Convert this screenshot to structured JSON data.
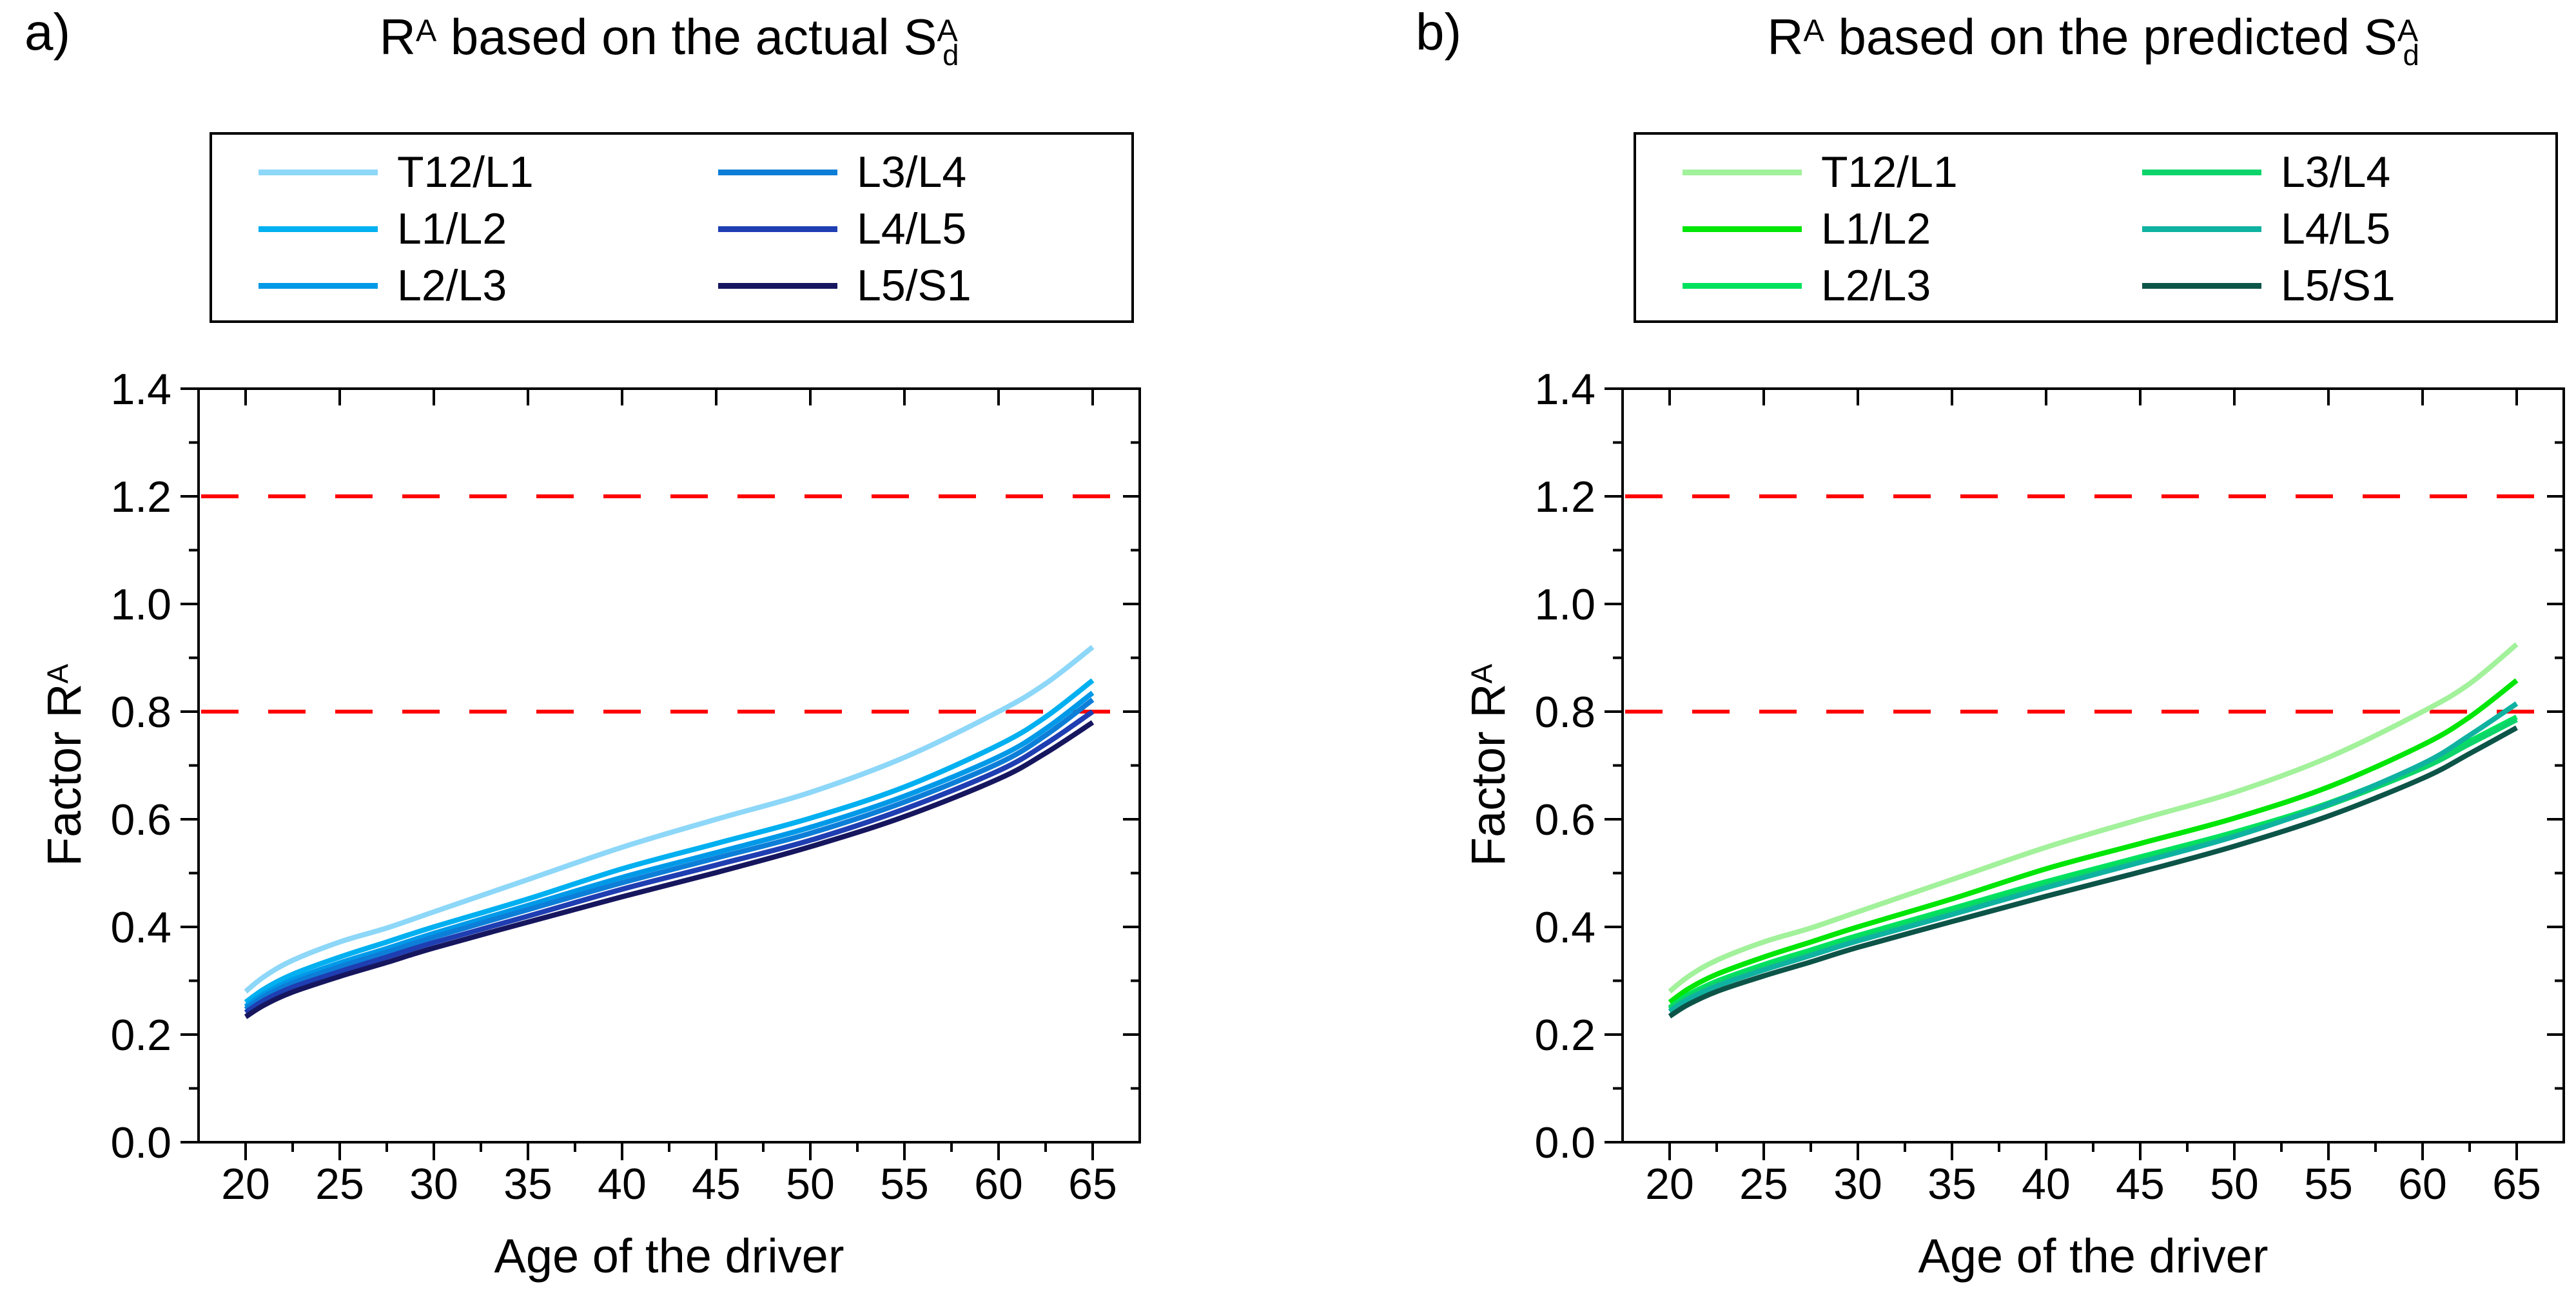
{
  "figure": {
    "corner_labels": [
      "a)",
      "b)"
    ],
    "background": "#ffffff",
    "axis_color": "#000000",
    "reference_line_color": "#fe0000"
  },
  "panels": [
    {
      "id": "a",
      "title": {
        "pre": "R",
        "pre_sup": "A",
        "mid": " based on the actual ",
        "s": "S",
        "s_sup": "A",
        "s_sub": "d"
      },
      "y_label": {
        "pre": "Factor R",
        "sup": "A"
      },
      "x_label": "Age of the driver",
      "x_tick_labels": [
        "20",
        "25",
        "30",
        "35",
        "40",
        "45",
        "50",
        "55",
        "60",
        "65"
      ],
      "y_tick_labels": [
        "0.0",
        "0.2",
        "0.4",
        "0.6",
        "0.8",
        "1.0",
        "1.2",
        "1.4"
      ]
    },
    {
      "id": "b",
      "title": {
        "pre": "R",
        "pre_sup": "A",
        "mid": " based on the predicted ",
        "s": "S",
        "s_sup": "A",
        "s_sub": "d"
      },
      "y_label": {
        "pre": "Factor R",
        "sup": "A"
      },
      "x_label": "Age of the driver",
      "x_tick_labels": [
        "20",
        "25",
        "30",
        "35",
        "40",
        "45",
        "50",
        "55",
        "60",
        "65"
      ],
      "y_tick_labels": [
        "0.0",
        "0.2",
        "0.4",
        "0.6",
        "0.8",
        "1.0",
        "1.2",
        "1.4"
      ]
    }
  ],
  "chart_data": [
    {
      "type": "line",
      "title": "R^A based on the actual S^A_d",
      "xlabel": "Age of the driver",
      "ylabel": "Factor R^A",
      "xlim": [
        17.5,
        67.5
      ],
      "ylim": [
        0,
        1.4
      ],
      "x_major_ticks": [
        20,
        25,
        30,
        35,
        40,
        45,
        50,
        55,
        60,
        65
      ],
      "y_major_ticks": [
        0.0,
        0.2,
        0.4,
        0.6,
        0.8,
        1.0,
        1.2,
        1.4
      ],
      "minor_x_step": 2.5,
      "minor_y_step": 0.1,
      "grid": false,
      "legend_position": "top",
      "ref_lines": [
        {
          "y": 0.8,
          "style": "dashed"
        },
        {
          "y": 1.2,
          "style": "dashed"
        }
      ],
      "x": [
        20,
        21,
        22.5,
        25,
        27.5,
        30,
        35,
        40,
        45,
        50,
        55,
        60,
        62.5,
        65
      ],
      "series": [
        {
          "name": "T12/L1",
          "color": "#8dd7f8",
          "values": [
            0.28,
            0.308,
            0.338,
            0.372,
            0.398,
            0.428,
            0.488,
            0.548,
            0.6,
            0.65,
            0.715,
            0.8,
            0.852,
            0.92
          ]
        },
        {
          "name": "L1/L2",
          "color": "#00b0f0",
          "values": [
            0.26,
            0.285,
            0.312,
            0.344,
            0.372,
            0.4,
            0.452,
            0.508,
            0.555,
            0.602,
            0.66,
            0.738,
            0.79,
            0.858
          ]
        },
        {
          "name": "L2/L3",
          "color": "#0099e8",
          "values": [
            0.252,
            0.276,
            0.302,
            0.333,
            0.36,
            0.388,
            0.44,
            0.492,
            0.538,
            0.585,
            0.643,
            0.716,
            0.768,
            0.835
          ]
        },
        {
          "name": "L3/L4",
          "color": "#0d7ed8",
          "values": [
            0.247,
            0.271,
            0.296,
            0.326,
            0.353,
            0.381,
            0.432,
            0.482,
            0.528,
            0.574,
            0.632,
            0.704,
            0.756,
            0.822
          ]
        },
        {
          "name": "L4/L5",
          "color": "#1f3eb2",
          "values": [
            0.241,
            0.264,
            0.288,
            0.317,
            0.344,
            0.371,
            0.42,
            0.47,
            0.515,
            0.561,
            0.619,
            0.69,
            0.74,
            0.8
          ]
        },
        {
          "name": "L5/S1",
          "color": "#16165f",
          "values": [
            0.233,
            0.255,
            0.279,
            0.308,
            0.334,
            0.361,
            0.409,
            0.456,
            0.501,
            0.549,
            0.605,
            0.675,
            0.723,
            0.78
          ]
        }
      ]
    },
    {
      "type": "line",
      "title": "R^A based on the predicted S^A_d",
      "xlabel": "Age of the driver",
      "ylabel": "Factor R^A",
      "xlim": [
        17.5,
        67.5
      ],
      "ylim": [
        0,
        1.4
      ],
      "x_major_ticks": [
        20,
        25,
        30,
        35,
        40,
        45,
        50,
        55,
        60,
        65
      ],
      "y_major_ticks": [
        0.0,
        0.2,
        0.4,
        0.6,
        0.8,
        1.0,
        1.2,
        1.4
      ],
      "minor_x_step": 2.5,
      "minor_y_step": 0.1,
      "grid": false,
      "legend_position": "top",
      "ref_lines": [
        {
          "y": 0.8,
          "style": "dashed"
        },
        {
          "y": 1.2,
          "style": "dashed"
        }
      ],
      "x": [
        20,
        21,
        22.5,
        25,
        27.5,
        30,
        35,
        40,
        45,
        50,
        55,
        60,
        62.5,
        65
      ],
      "series": [
        {
          "name": "T12/L1",
          "color": "#a2f19b",
          "values": [
            0.28,
            0.308,
            0.338,
            0.372,
            0.398,
            0.428,
            0.488,
            0.548,
            0.6,
            0.65,
            0.715,
            0.8,
            0.852,
            0.925
          ]
        },
        {
          "name": "L1/L2",
          "color": "#00e606",
          "values": [
            0.26,
            0.285,
            0.312,
            0.344,
            0.372,
            0.4,
            0.452,
            0.508,
            0.555,
            0.602,
            0.66,
            0.738,
            0.79,
            0.858
          ]
        },
        {
          "name": "L2/L3",
          "color": "#00e25e",
          "values": [
            0.25,
            0.274,
            0.299,
            0.33,
            0.357,
            0.384,
            0.434,
            0.484,
            0.53,
            0.576,
            0.63,
            0.7,
            0.745,
            0.79
          ]
        },
        {
          "name": "L3/L4",
          "color": "#0cd46a",
          "values": [
            0.247,
            0.27,
            0.294,
            0.324,
            0.35,
            0.377,
            0.427,
            0.477,
            0.523,
            0.57,
            0.626,
            0.695,
            0.74,
            0.785
          ]
        },
        {
          "name": "L4/L5",
          "color": "#0fb2a0",
          "values": [
            0.243,
            0.266,
            0.29,
            0.32,
            0.347,
            0.374,
            0.423,
            0.473,
            0.52,
            0.568,
            0.628,
            0.703,
            0.756,
            0.815
          ]
        },
        {
          "name": "L5/S1",
          "color": "#0c5448",
          "values": [
            0.234,
            0.256,
            0.28,
            0.309,
            0.335,
            0.362,
            0.41,
            0.457,
            0.502,
            0.55,
            0.606,
            0.676,
            0.722,
            0.77
          ]
        }
      ]
    }
  ]
}
